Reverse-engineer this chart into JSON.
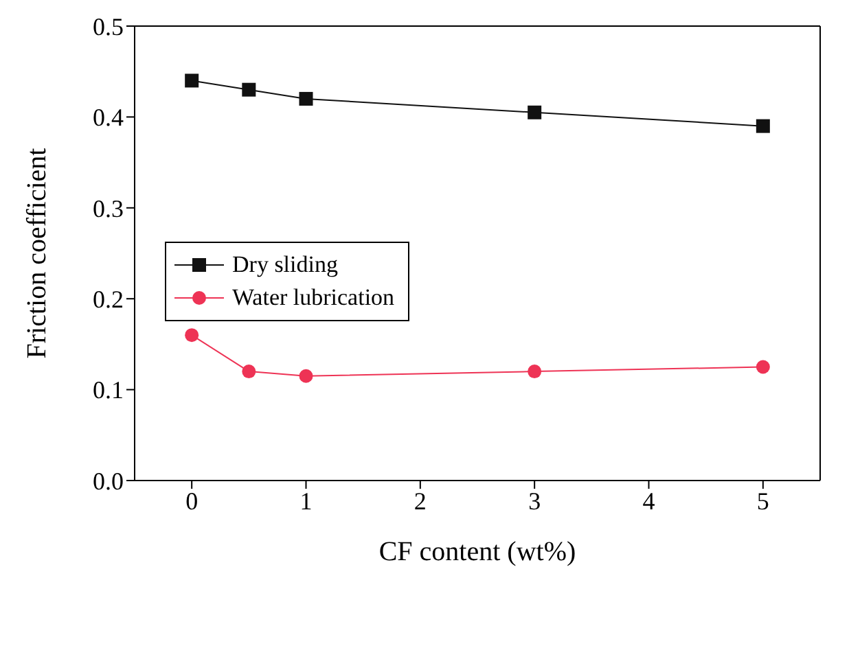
{
  "chart_data": {
    "type": "line",
    "xlabel": "CF content (wt%)",
    "ylabel": "Friction coefficient",
    "x": [
      0,
      0.5,
      1,
      3,
      5
    ],
    "xlim": [
      -0.5,
      5.5
    ],
    "xticks": [
      0,
      1,
      2,
      3,
      4,
      5
    ],
    "ylim": [
      0,
      0.5
    ],
    "yticks": [
      {
        "value": 0,
        "label": "0.0"
      },
      0.1,
      0.2,
      0.3,
      0.4,
      0.5
    ],
    "series": [
      {
        "name": "Dry sliding",
        "color": "#111111",
        "marker": "square",
        "values": [
          0.44,
          0.43,
          0.42,
          0.405,
          0.39
        ]
      },
      {
        "name": "Water lubrication",
        "color": "#ee3355",
        "marker": "circle",
        "values": [
          0.16,
          0.12,
          0.115,
          0.12,
          0.125
        ]
      }
    ],
    "grid": false,
    "legend": "left",
    "line_style": "solid"
  }
}
